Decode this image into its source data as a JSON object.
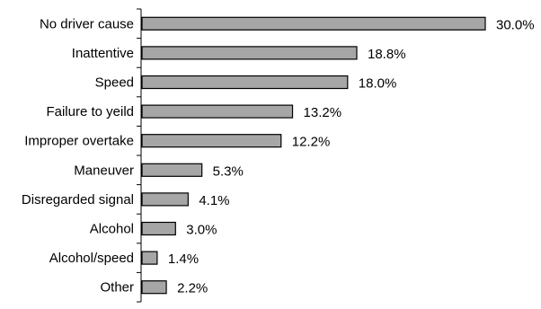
{
  "chart_data": {
    "type": "bar",
    "orientation": "horizontal",
    "categories": [
      "No driver cause",
      "Inattentive",
      "Speed",
      "Failure to yeild",
      "Improper overtake",
      "Maneuver",
      "Disregarded signal",
      "Alcohol",
      "Alcohol/speed",
      "Other"
    ],
    "values": [
      30.0,
      18.8,
      18.0,
      13.2,
      12.2,
      5.3,
      4.1,
      3.0,
      1.4,
      2.2
    ],
    "value_labels": [
      "30.0%",
      "18.8%",
      "18.0%",
      "13.2%",
      "12.2%",
      "5.3%",
      "4.1%",
      "3.0%",
      "1.4%",
      "2.2%"
    ],
    "title": "",
    "xlabel": "",
    "ylabel": "",
    "xlim": [
      0,
      30
    ],
    "grid": false,
    "legend": "none",
    "bar_color": "#a6a6a6",
    "bar_edge_color": "#000000"
  }
}
